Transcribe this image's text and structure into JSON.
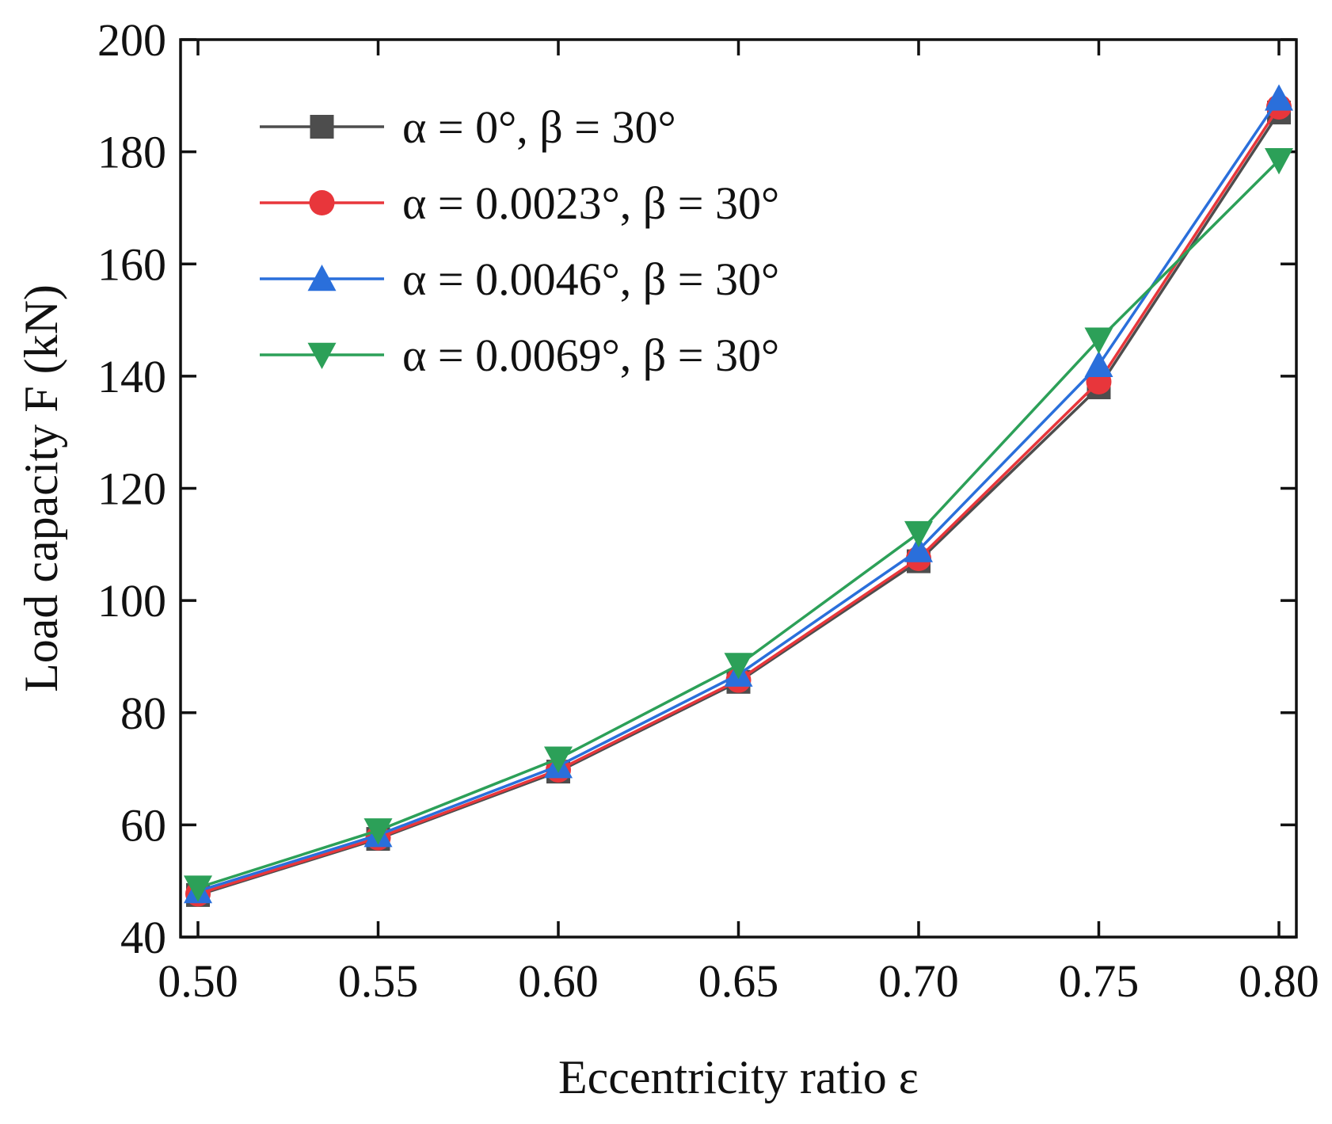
{
  "chart_data": {
    "type": "line",
    "title": "",
    "xlabel": "Eccentricity ratio ε",
    "ylabel": "Load capacity F (kN)",
    "xlim": [
      0.5,
      0.8
    ],
    "ylim": [
      40,
      200
    ],
    "xticks": [
      "0.50",
      "0.55",
      "0.60",
      "0.65",
      "0.70",
      "0.75",
      "0.80"
    ],
    "yticks": [
      "40",
      "60",
      "80",
      "100",
      "120",
      "140",
      "160",
      "180",
      "200"
    ],
    "grid": false,
    "legend_position": "top-left",
    "x": [
      0.5,
      0.55,
      0.6,
      0.65,
      0.7,
      0.75,
      0.8
    ],
    "series": [
      {
        "name": "α = 0°, β = 30°",
        "color": "#4d4d4d",
        "marker": "square",
        "values": [
          47.5,
          57.5,
          69.5,
          85.5,
          107,
          138,
          187
        ]
      },
      {
        "name": "α = 0.0023°, β = 30°",
        "color": "#e8363b",
        "marker": "circle",
        "values": [
          47.7,
          57.7,
          69.8,
          85.8,
          107.5,
          139,
          188
        ]
      },
      {
        "name": "α = 0.0046°, β = 30°",
        "color": "#2a6fdb",
        "marker": "triangle-up",
        "values": [
          48.2,
          58.2,
          70.5,
          86.8,
          109,
          142,
          189.5
        ]
      },
      {
        "name": "α = 0.0069°, β = 30°",
        "color": "#2ca058",
        "marker": "triangle-down",
        "values": [
          48.8,
          59,
          71.8,
          88.5,
          112,
          146.5,
          178.5
        ]
      }
    ]
  }
}
